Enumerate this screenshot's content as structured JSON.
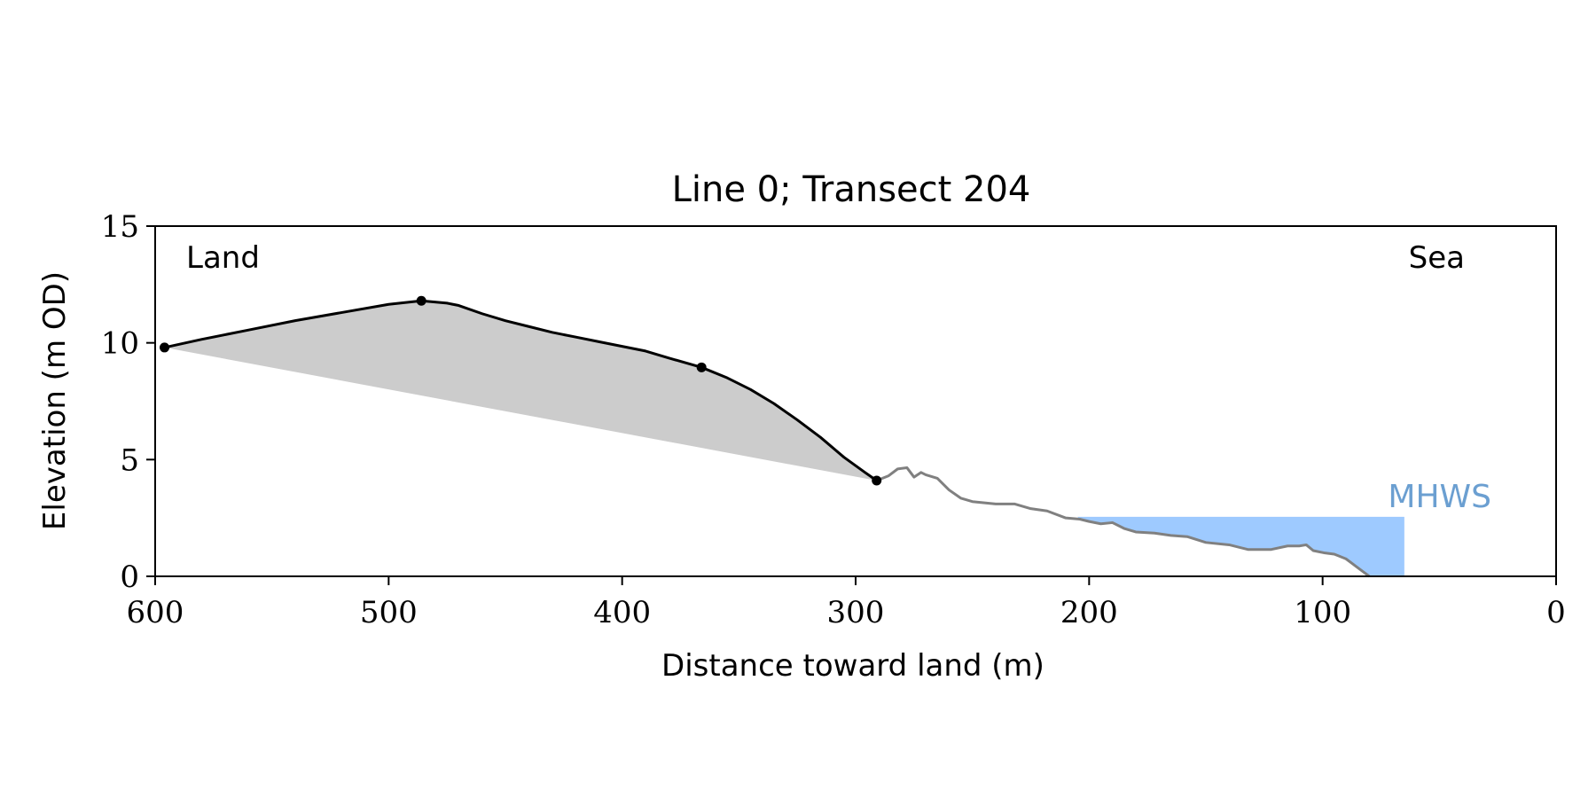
{
  "chart_data": {
    "type": "line",
    "title": "Line 0; Transect 204",
    "xlabel": "Distance toward land (m)",
    "ylabel": "Elevation (m OD)",
    "xlim": [
      600,
      0
    ],
    "ylim": [
      0,
      15
    ],
    "x_reversed": true,
    "xticks": [
      600,
      500,
      400,
      300,
      200,
      100,
      0
    ],
    "yticks": [
      0,
      5,
      10,
      15
    ],
    "grid": false,
    "legend": "none",
    "annotations": {
      "left": "Land",
      "right": "Sea",
      "mhws": "MHWS"
    },
    "colors": {
      "profile_main": "#000000",
      "profile_seaward": "#808080",
      "fill_area": "#cccccc",
      "mhws_fill": "#9ecaff",
      "mhws_text": "#6b9fd1"
    },
    "series": [
      {
        "name": "profile-main",
        "x": [
          596,
          580,
          560,
          540,
          520,
          500,
          486,
          475,
          470,
          460,
          450,
          440,
          430,
          420,
          410,
          400,
          390,
          380,
          366,
          355,
          345,
          335,
          325,
          315,
          305,
          296,
          291
        ],
        "y": [
          9.8,
          10.15,
          10.55,
          10.95,
          11.3,
          11.65,
          11.8,
          11.7,
          11.6,
          11.25,
          10.95,
          10.7,
          10.45,
          10.25,
          10.05,
          9.85,
          9.65,
          9.35,
          8.95,
          8.5,
          8.0,
          7.4,
          6.7,
          5.95,
          5.1,
          4.45,
          4.1
        ]
      },
      {
        "name": "profile-seaward",
        "x": [
          291,
          286,
          282,
          278,
          275,
          272,
          270,
          265,
          260,
          255,
          250,
          240,
          232,
          225,
          218,
          210,
          204,
          200,
          195,
          190,
          185,
          180,
          172,
          165,
          158,
          150,
          140,
          132,
          128,
          122,
          115,
          110,
          107,
          104,
          99,
          95,
          90,
          86,
          82,
          80
        ],
        "y": [
          4.1,
          4.3,
          4.6,
          4.65,
          4.25,
          4.45,
          4.35,
          4.2,
          3.7,
          3.35,
          3.2,
          3.1,
          3.1,
          2.9,
          2.8,
          2.5,
          2.45,
          2.35,
          2.25,
          2.3,
          2.05,
          1.9,
          1.85,
          1.75,
          1.7,
          1.45,
          1.35,
          1.15,
          1.15,
          1.15,
          1.3,
          1.3,
          1.35,
          1.1,
          1.0,
          0.95,
          0.75,
          0.45,
          0.15,
          0.0
        ]
      }
    ],
    "markers": {
      "x": [
        596,
        486,
        366,
        291
      ],
      "y": [
        9.8,
        11.8,
        8.95,
        4.1
      ]
    },
    "shaded_region": {
      "baseline_start": [
        596,
        9.8
      ],
      "baseline_end": [
        291,
        4.1
      ]
    },
    "mhws": {
      "level": 2.55,
      "x_start": 205,
      "x_end": 65
    }
  }
}
